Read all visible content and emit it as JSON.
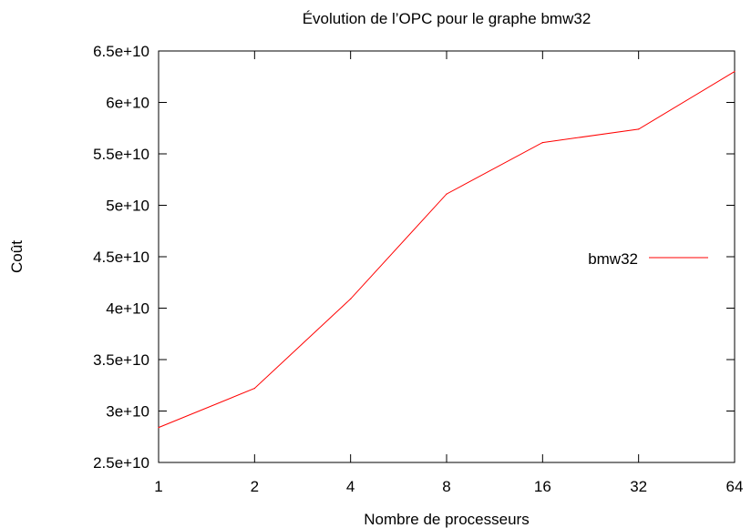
{
  "chart_data": {
    "type": "line",
    "title": "Évolution de l’OPC pour le graphe bmw32",
    "xlabel": "Nombre de processeurs",
    "ylabel": "Coût",
    "categories": [
      "1",
      "2",
      "4",
      "8",
      "16",
      "32",
      "64"
    ],
    "x": [
      1,
      2,
      4,
      8,
      16,
      32,
      64
    ],
    "x_scale": "log2",
    "ylim": [
      25000000000,
      65000000000
    ],
    "y_ticks": [
      25000000000,
      30000000000,
      35000000000,
      40000000000,
      45000000000,
      50000000000,
      55000000000,
      60000000000,
      65000000000
    ],
    "y_tick_labels": [
      "2.5e+10",
      "3e+10",
      "3.5e+10",
      "4e+10",
      "4.5e+10",
      "5e+10",
      "5.5e+10",
      "6e+10",
      "6.5e+10"
    ],
    "grid": false,
    "legend_position": "right",
    "series": [
      {
        "name": "bmw32",
        "color": "#ff0000",
        "values": [
          28400000000,
          32200000000,
          40900000000,
          51100000000,
          56100000000,
          57400000000,
          63000000000
        ]
      }
    ]
  }
}
